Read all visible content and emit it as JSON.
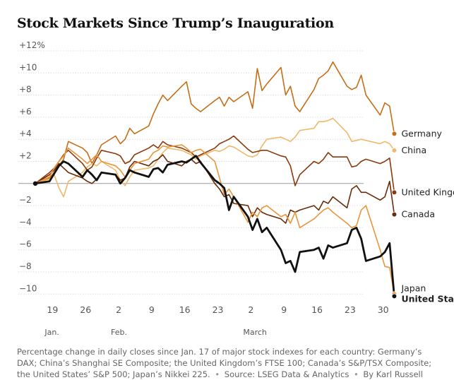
{
  "title": "Stock Markets Since Trump’s Inauguration",
  "caption": {
    "text": "Percentage change in daily closes since Jan. 17 of major stock indexes for each country: Germany’s DAX; China’s Shanghai SE Composite; the United Kingdom’s FTSE 100; Canada’s S&P/TSX Composite; the United States’ S&P 500; Japan’s Nikkei 225.",
    "source": "Source: LSEG Data & Analytics",
    "byline": "By Karl Russell"
  },
  "chart_data": {
    "type": "line",
    "title": "Stock Markets Since Trump’s Inauguration",
    "xlabel": "",
    "ylabel": "",
    "ylim": [
      -11.5,
      12.5
    ],
    "y_ticks": [
      12,
      10,
      8,
      6,
      4,
      2,
      0,
      -2,
      -4,
      -6,
      -8,
      -10
    ],
    "y_tick_labels": [
      "+12%",
      "+10",
      "+8",
      "+6",
      "+4",
      "+2",
      "",
      "−2",
      "−4",
      "−6",
      "−8",
      "−10"
    ],
    "x_ticks": [
      {
        "day": 19,
        "label": "19",
        "month": "Jan."
      },
      {
        "day": 26,
        "label": "26",
        "month": ""
      },
      {
        "day": 33,
        "label": "2",
        "month": "Feb."
      },
      {
        "day": 40,
        "label": "9",
        "month": ""
      },
      {
        "day": 47,
        "label": "16",
        "month": ""
      },
      {
        "day": 54,
        "label": "23",
        "month": ""
      },
      {
        "day": 61,
        "label": "2",
        "month": "March"
      },
      {
        "day": 68,
        "label": "9",
        "month": ""
      },
      {
        "day": 75,
        "label": "16",
        "month": ""
      },
      {
        "day": 82,
        "label": "23",
        "month": ""
      },
      {
        "day": 89,
        "label": "30",
        "month": ""
      }
    ],
    "grid": true,
    "series": [
      {
        "name": "Germany",
        "color": "#c46e17",
        "bold": false,
        "x": [
          17,
          20,
          21,
          22,
          23,
          24,
          27,
          28,
          29,
          30,
          31,
          34,
          35,
          36,
          37,
          38,
          41,
          42,
          43,
          44,
          45,
          48,
          49,
          50,
          51,
          52,
          55,
          56,
          57,
          58,
          59,
          62,
          63,
          64,
          65,
          66,
          69,
          70,
          71,
          72,
          73,
          76,
          77,
          78,
          79,
          80,
          83,
          84,
          85,
          86,
          87,
          90,
          91,
          92,
          93
        ],
        "y": [
          0,
          0.5,
          1.0,
          1.6,
          2.2,
          3.8,
          3.2,
          2.8,
          1.8,
          2.6,
          3.5,
          4.3,
          3.6,
          4.0,
          5.0,
          4.5,
          5.2,
          6.3,
          7.2,
          8.0,
          7.5,
          8.8,
          9.2,
          7.2,
          6.8,
          6.5,
          7.5,
          7.8,
          7.0,
          7.8,
          7.4,
          8.3,
          6.8,
          10.4,
          8.4,
          9.0,
          10.5,
          8.0,
          8.8,
          7.0,
          6.5,
          8.5,
          9.5,
          9.8,
          10.2,
          11.0,
          8.8,
          8.5,
          8.7,
          9.8,
          8.0,
          6.2,
          7.3,
          7.0,
          4.5
        ]
      },
      {
        "name": "China",
        "color": "#f0b869",
        "bold": false,
        "x": [
          17,
          20,
          21,
          22,
          23,
          24,
          27,
          28,
          29,
          30,
          31,
          34,
          35,
          36,
          37,
          38,
          41,
          42,
          43,
          44,
          45,
          48,
          49,
          50,
          51,
          52,
          55,
          56,
          57,
          58,
          59,
          62,
          63,
          64,
          65,
          66,
          69,
          70,
          71,
          72,
          73,
          76,
          77,
          78,
          79,
          80,
          83,
          84,
          85,
          86,
          87,
          90,
          91,
          92,
          93
        ],
        "y": [
          0,
          0.4,
          0.8,
          -0.4,
          -1.2,
          0.2,
          1.0,
          1.5,
          1.8,
          1.6,
          2.0,
          1.2,
          0.3,
          -0.2,
          0.6,
          1.2,
          1.4,
          1.6,
          2.2,
          2.8,
          3.2,
          3.0,
          2.8,
          2.6,
          2.2,
          2.5,
          3.0,
          2.9,
          3.1,
          3.4,
          3.3,
          2.5,
          2.4,
          2.6,
          3.4,
          4.0,
          4.2,
          4.0,
          3.8,
          4.2,
          4.8,
          5.0,
          5.6,
          5.6,
          5.7,
          5.9,
          4.6,
          3.8,
          3.9,
          4.0,
          3.9,
          3.6,
          3.8,
          3.6,
          3.0
        ]
      },
      {
        "name": "United Kingdom",
        "color": "#8a3a0c",
        "bold": false,
        "x": [
          17,
          20,
          21,
          22,
          23,
          24,
          27,
          28,
          29,
          30,
          31,
          34,
          35,
          36,
          37,
          38,
          41,
          42,
          43,
          44,
          45,
          48,
          49,
          50,
          51,
          52,
          55,
          56,
          57,
          58,
          59,
          62,
          63,
          64,
          65,
          66,
          69,
          70,
          71,
          72,
          73,
          76,
          77,
          78,
          79,
          80,
          83,
          84,
          85,
          86,
          87,
          90,
          91,
          92,
          93
        ],
        "y": [
          0,
          1.0,
          1.4,
          2.0,
          2.6,
          3.0,
          1.8,
          1.2,
          1.5,
          2.3,
          3.0,
          2.7,
          2.5,
          1.8,
          2.0,
          2.6,
          3.2,
          3.5,
          3.2,
          3.8,
          3.5,
          3.2,
          3.0,
          2.8,
          2.4,
          2.6,
          3.2,
          3.6,
          3.8,
          4.0,
          4.3,
          3.1,
          2.8,
          2.9,
          3.0,
          3.0,
          2.5,
          2.4,
          1.6,
          -0.2,
          0.8,
          2.0,
          1.8,
          2.2,
          2.8,
          2.4,
          2.4,
          1.5,
          1.6,
          2.0,
          2.2,
          1.8,
          2.0,
          2.3,
          -0.8
        ]
      },
      {
        "name": "Canada",
        "color": "#6b2a08",
        "bold": false,
        "x": [
          17,
          20,
          21,
          22,
          23,
          24,
          27,
          28,
          29,
          30,
          31,
          34,
          35,
          36,
          37,
          38,
          41,
          42,
          43,
          44,
          45,
          48,
          49,
          50,
          51,
          52,
          55,
          56,
          57,
          58,
          59,
          62,
          63,
          64,
          65,
          66,
          69,
          70,
          71,
          72,
          73,
          76,
          77,
          78,
          79,
          80,
          83,
          84,
          85,
          86,
          87,
          90,
          91,
          92,
          93
        ],
        "y": [
          0,
          0.8,
          1.2,
          1.8,
          1.4,
          1.0,
          0.5,
          0.2,
          0.0,
          0.4,
          1.0,
          0.8,
          0.3,
          0.5,
          1.5,
          2.0,
          1.6,
          2.0,
          2.2,
          2.6,
          2.0,
          1.6,
          2.0,
          2.2,
          1.8,
          2.0,
          0.0,
          -0.5,
          -1.2,
          -1.0,
          -1.8,
          -2.0,
          -3.0,
          -2.2,
          -2.6,
          -2.8,
          -3.2,
          -3.6,
          -2.4,
          -2.6,
          -2.4,
          -2.0,
          -2.4,
          -1.6,
          -1.8,
          -1.2,
          -2.2,
          -0.5,
          -0.2,
          -0.8,
          -0.8,
          -1.5,
          -1.2,
          0.2,
          -2.8
        ]
      },
      {
        "name": "Japan",
        "color": "#e8953b",
        "bold": false,
        "x": [
          17,
          20,
          21,
          22,
          23,
          24,
          27,
          28,
          29,
          30,
          31,
          34,
          35,
          36,
          37,
          38,
          41,
          42,
          43,
          44,
          45,
          48,
          49,
          50,
          51,
          52,
          55,
          56,
          57,
          58,
          59,
          62,
          63,
          64,
          65,
          66,
          69,
          70,
          71,
          72,
          73,
          76,
          77,
          78,
          79,
          80,
          83,
          84,
          85,
          86,
          87,
          90,
          91,
          92,
          93
        ],
        "y": [
          0,
          0.6,
          1.4,
          2.0,
          2.5,
          3.2,
          2.2,
          1.8,
          2.2,
          2.6,
          2.0,
          1.6,
          1.2,
          0.6,
          1.2,
          1.8,
          2.2,
          2.8,
          3.0,
          3.4,
          3.3,
          3.5,
          3.2,
          2.8,
          3.0,
          3.1,
          2.0,
          0.5,
          -1.0,
          -0.5,
          -1.2,
          -3.5,
          -2.6,
          -3.0,
          -2.2,
          -2.0,
          -3.0,
          -2.8,
          -3.6,
          -2.6,
          -4.0,
          -3.2,
          -2.8,
          -2.4,
          -2.2,
          -2.6,
          -3.6,
          -4.0,
          -3.8,
          -2.4,
          -2.0,
          -6.0,
          -7.5,
          -7.6,
          -10.0
        ]
      },
      {
        "name": "United States",
        "color": "#111111",
        "bold": true,
        "x": [
          17,
          20,
          21,
          22,
          23,
          24,
          27,
          28,
          29,
          30,
          31,
          34,
          35,
          36,
          37,
          38,
          41,
          42,
          43,
          44,
          45,
          48,
          49,
          50,
          51,
          52,
          55,
          56,
          57,
          58,
          59,
          62,
          63,
          64,
          65,
          66,
          69,
          70,
          71,
          72,
          73,
          76,
          77,
          78,
          79,
          80,
          83,
          84,
          85,
          86,
          87,
          90,
          91,
          92,
          93
        ],
        "y": [
          0,
          0.2,
          0.9,
          1.6,
          2.0,
          1.8,
          0.6,
          1.2,
          0.8,
          0.3,
          1.0,
          0.8,
          0.0,
          0.5,
          1.2,
          1.0,
          0.6,
          1.3,
          1.4,
          1.0,
          1.7,
          2.0,
          1.9,
          2.2,
          2.5,
          1.9,
          0.3,
          0.0,
          -0.4,
          -2.4,
          -1.2,
          -3.0,
          -4.2,
          -3.2,
          -4.4,
          -4.0,
          -6.0,
          -7.2,
          -7.0,
          -8.0,
          -6.2,
          -6.0,
          -5.8,
          -6.8,
          -5.6,
          -5.8,
          -5.4,
          -4.2,
          -4.0,
          -5.0,
          -7.0,
          -6.6,
          -6.2,
          -5.4,
          -10.2
        ]
      }
    ],
    "end_labels": [
      {
        "series": "Germany",
        "text": "Germany",
        "bold": false
      },
      {
        "series": "China",
        "text": "China",
        "bold": false
      },
      {
        "series": "United Kingdom",
        "text": "United Kingdom",
        "bold": false
      },
      {
        "series": "Canada",
        "text": "Canada",
        "bold": false
      },
      {
        "series": "Japan",
        "text": "Japan",
        "bold": false
      },
      {
        "series": "United States",
        "text": "United States",
        "bold": true
      }
    ],
    "legend": "inline at line ends (right)"
  }
}
